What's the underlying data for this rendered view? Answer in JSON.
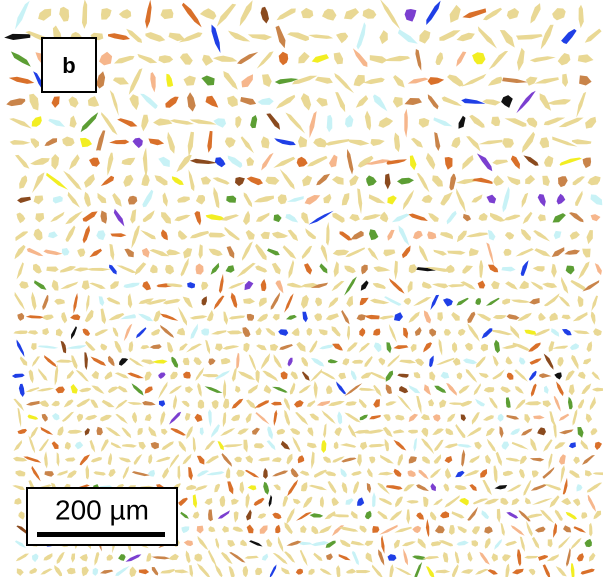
{
  "panel_label": "b",
  "scale_bar": {
    "label": "200 µm"
  }
}
